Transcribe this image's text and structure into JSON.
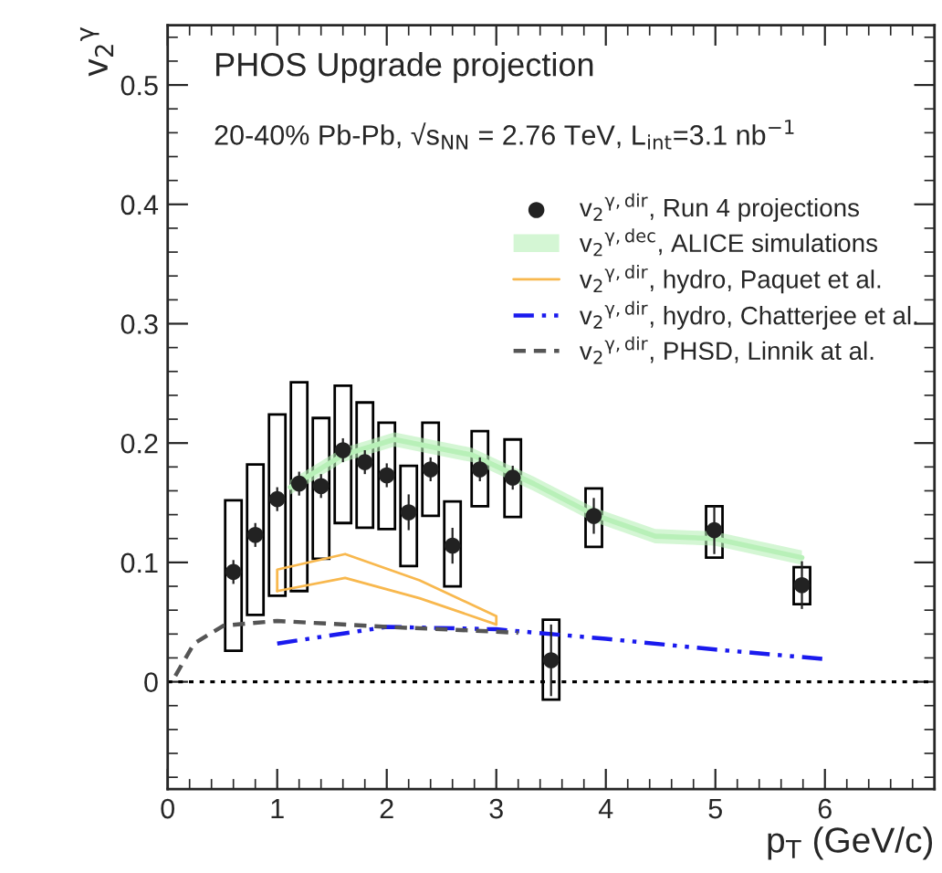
{
  "chart_data": {
    "type": "scatter",
    "title": "PHOS Upgrade projection",
    "subtitle": "20-40% Pb-Pb, √s$_{NN}$ = 2.76 TeV, L$_{int}$=3.1 nb$^{−1}$",
    "xlabel": "p$_{T}$ (GeV/c)",
    "ylabel": "v$_{2}$$^{γ}$",
    "xlim": [
      0,
      7
    ],
    "ylim": [
      -0.09,
      0.55
    ],
    "xticks": [
      0,
      1,
      2,
      3,
      4,
      5,
      6
    ],
    "yticks": [
      0,
      0.1,
      0.2,
      0.3,
      0.4,
      0.5
    ],
    "legend": "top right",
    "grid": false,
    "ref_lines": [
      {
        "axis": "y",
        "value": 0,
        "color": "#000000",
        "line_style": "dotted"
      }
    ],
    "series": [
      {
        "type": "bar",
        "color": "#000000",
        "x": [
          0.6,
          0.8,
          1.0,
          1.2,
          1.4,
          1.6,
          1.8,
          2.0,
          2.2,
          2.4,
          2.6,
          2.85,
          3.15,
          3.5,
          3.89,
          4.99,
          5.79
        ],
        "base": [
          0.026,
          0.056,
          0.072,
          0.076,
          0.103,
          0.133,
          0.129,
          0.128,
          0.097,
          0.139,
          0.08,
          0.147,
          0.138,
          -0.015,
          0.113,
          0.104,
          0.065
        ],
        "values": [
          0.126,
          0.126,
          0.152,
          0.175,
          0.118,
          0.115,
          0.105,
          0.089,
          0.084,
          0.078,
          0.071,
          0.063,
          0.065,
          0.067,
          0.049,
          0.043,
          0.031
        ]
      },
      {
        "name": "v$_{2}$$^{γ,dir}$, Run 4 projections",
        "color": "#222222",
        "marker": "circle",
        "x": [
          0.6,
          0.8,
          1.0,
          1.2,
          1.4,
          1.6,
          1.8,
          2.0,
          2.2,
          2.4,
          2.6,
          2.85,
          3.15,
          3.5,
          3.89,
          4.99,
          5.79
        ],
        "values": [
          0.092,
          0.123,
          0.153,
          0.166,
          0.164,
          0.194,
          0.184,
          0.173,
          0.142,
          0.178,
          0.114,
          0.178,
          0.171,
          0.018,
          0.139,
          0.127,
          0.081
        ],
        "errors": [
          0.01,
          0.01,
          0.01,
          0.01,
          0.01,
          0.01,
          0.01,
          0.01,
          0.015,
          0.01,
          0.015,
          0.01,
          0.01,
          0.03,
          0.015,
          0.02,
          0.02
        ]
      },
      {
        "type": "line",
        "name": "v$_{2}$$^{γ,dec}$, ALICE simulations",
        "color": "#b8f0b8",
        "line_style": "solid",
        "x": [
          1.12,
          1.6,
          2.07,
          2.78,
          3.34,
          3.89,
          4.45,
          4.99,
          5.79
        ],
        "values": [
          0.163,
          0.19,
          0.203,
          0.19,
          0.166,
          0.14,
          0.122,
          0.12,
          0.104
        ],
        "lower": [
          0.157,
          0.184,
          0.197,
          0.184,
          0.16,
          0.134,
          0.116,
          0.114,
          0.098
        ],
        "upper": [
          0.169,
          0.196,
          0.209,
          0.196,
          0.172,
          0.146,
          0.128,
          0.126,
          0.11
        ]
      },
      {
        "type": "line",
        "name": "v$_{2}$$^{γ,dir}$, hydro, Paquet et al.",
        "color": "#f8b84e",
        "line_style": "solid",
        "x": [
          1.0,
          1.0,
          1.62,
          2.3,
          3.0,
          3.0
        ],
        "values": [
          0.076,
          0.094,
          0.107,
          0.085,
          0.055,
          0.048
        ]
      },
      {
        "type": "line",
        "color": "#f8b84e",
        "line_style": "solid",
        "x": [
          1.0,
          1.62,
          2.3,
          3.0
        ],
        "values": [
          0.076,
          0.087,
          0.07,
          0.048
        ]
      },
      {
        "type": "line",
        "name": "v$_{2}$$^{γ,dir}$, hydro, Chatterjee et al.",
        "color": "#1a1aee",
        "line_style": "dashdot",
        "x": [
          1.0,
          2.0,
          3.0,
          4.0,
          5.0,
          6.0
        ],
        "values": [
          0.032,
          0.046,
          0.044,
          0.036,
          0.027,
          0.019
        ]
      },
      {
        "type": "line",
        "name": "v$_{2}$$^{γ,dir}$, PHSD, Linnik at al.",
        "color": "#555555",
        "line_style": "dashed",
        "x": [
          0.07,
          0.24,
          0.51,
          1.0,
          2.0,
          3.0,
          3.2
        ],
        "values": [
          0.005,
          0.032,
          0.047,
          0.051,
          0.046,
          0.042,
          0.041
        ]
      }
    ]
  }
}
